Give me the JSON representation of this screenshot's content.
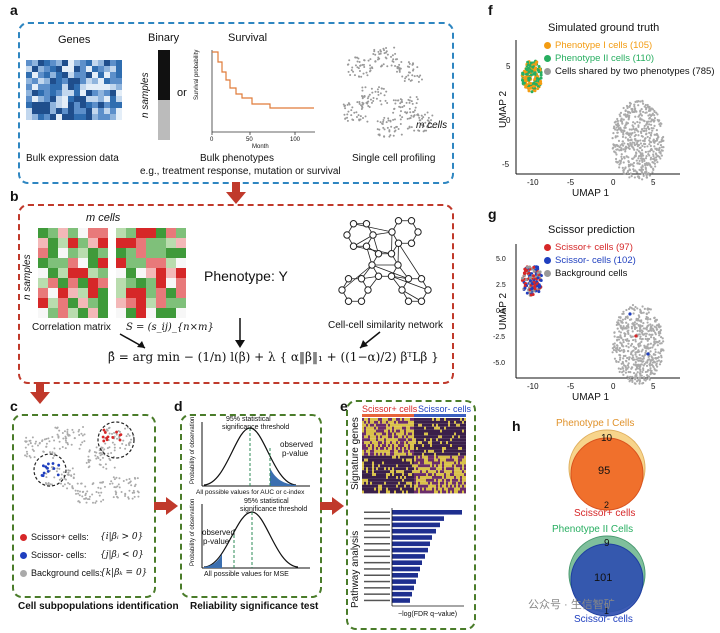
{
  "panels": {
    "a": {
      "label": "a",
      "genes_title": "Genes",
      "binary_title": "Binary",
      "survival_title": "Survival",
      "n_samples": "n samples",
      "or": "or",
      "surv_ylabel": "Survival probability",
      "surv_xlabel": "Month",
      "surv_ticks": [
        "0",
        "50",
        "100"
      ],
      "m_cells": "m cells",
      "bulk_expression": "Bulk expression data",
      "bulk_phenotypes": "Bulk phenotypes",
      "single_cell": "Single cell profiling",
      "caption": "e.g., treatment response, mutation or survival"
    },
    "b": {
      "label": "b",
      "m_cells": "m cells",
      "n_samples": "n samples",
      "correlation_matrix": "Correlation matrix",
      "s_formula": "S = (s_ij)_{n×m}",
      "phenotype": "Phenotype: Y",
      "network": "Cell-cell similarity network",
      "equation": "β̂ = arg min − (1/n) l(β) + λ { α‖β‖₁ + ((1−α)/2) βᵀLβ }"
    },
    "c": {
      "label": "c",
      "legend": [
        {
          "label": "Scissor+ cells:",
          "formula": "{i|βᵢ > 0}",
          "color": "#d62728"
        },
        {
          "label": "Scissor- cells:",
          "formula": "{j|βⱼ < 0}",
          "color": "#1f3fbf"
        },
        {
          "label": "Background cells:",
          "formula": "{k|βₖ = 0}",
          "color": "#aaaaaa"
        }
      ],
      "caption": "Cell subpopulations identification"
    },
    "d": {
      "label": "d",
      "top_annot1": "95% statistical",
      "top_annot2": "significance threshold",
      "top_obs1": "observed",
      "top_obs2": "p-value",
      "top_ylabel": "Probability of observation",
      "top_xlabel": "All possible values for AUC or c-index",
      "bot_annot1": "95% statistical",
      "bot_annot2": "significance threshold",
      "bot_obs1": "observed",
      "bot_obs2": "p-value",
      "bot_ylabel": "Probability of observation",
      "bot_xlabel": "All possible values for MSE",
      "caption": "Reliability significance test"
    },
    "e": {
      "label": "e",
      "scissor_plus": "Scissor+ cells",
      "scissor_minus": "Scissor- cells",
      "signature_genes": "Signature genes",
      "pathway_analysis": "Pathway analysis",
      "xlabel": "−log(FDR q−value)"
    },
    "f": {
      "label": "f",
      "title": "Simulated ground truth",
      "legend": [
        {
          "label": "Phenotype I cells (105)",
          "color": "#f39c12"
        },
        {
          "label": "Phenotype II cells (110)",
          "color": "#27ae60"
        },
        {
          "label": "Cells shared by two phenotypes (785)",
          "color": "#999999"
        }
      ],
      "ylabel": "UMAP 2",
      "xlabel": "UMAP 1",
      "xticks": [
        "-10",
        "-5",
        "0",
        "5"
      ],
      "yticks": [
        "5",
        "0",
        "-5"
      ]
    },
    "g": {
      "label": "g",
      "title": "Scissor prediction",
      "legend": [
        {
          "label": "Scissor+ cells (97)",
          "color": "#d62728"
        },
        {
          "label": "Scissor-  cells (102)",
          "color": "#1f3fbf"
        },
        {
          "label": "Background cells",
          "color": "#999999"
        }
      ],
      "ylabel": "UMAP 2",
      "xlabel": "UMAP 1",
      "xticks": [
        "-10",
        "-5",
        "0",
        "5"
      ],
      "yticks": [
        "5.0",
        "2.5",
        "0.0",
        "-2.5",
        "-5.0"
      ]
    },
    "h": {
      "label": "h",
      "top_title": "Phenotype I Cells",
      "top_only": "10",
      "top_overlap": "95",
      "top_bottom": "2",
      "top_caption": "Scissor+ cells",
      "bottom_title": "Phenotype II Cells",
      "bottom_only": "9",
      "bottom_overlap": "101",
      "bottom_bottom": "1",
      "bottom_caption": "Scissor- cells"
    }
  },
  "watermark": "公众号 · 生信智矿",
  "colors": {
    "blue_border": "#2e86c1",
    "red_border": "#c0392b",
    "green_border": "#4a7c2a",
    "arrow": "#c0392b"
  }
}
